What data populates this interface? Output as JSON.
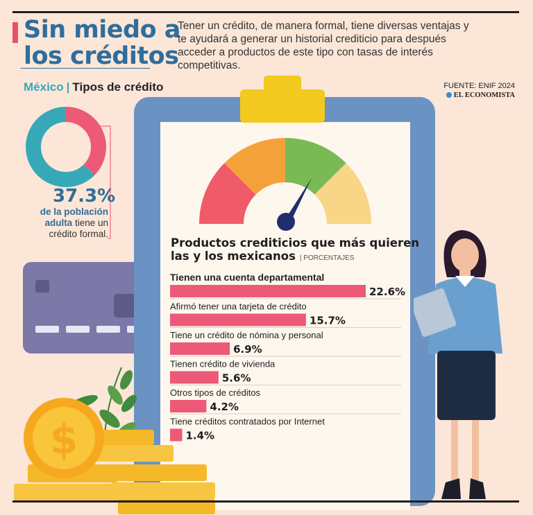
{
  "header": {
    "title_line1": "Sin miedo a",
    "title_line2": "los créditos",
    "intro": "Tener un crédito, de manera formal, tiene diversas ventajas y te ayudará a generar un historial crediticio para después acceder a productos de este tipo con tasas de interés competitivas.",
    "source": "FUENTE: ENIF 2024",
    "brand": "EL ECONOMISTA"
  },
  "summary": {
    "country": "México",
    "separator": "|",
    "topic": "Tipos de crédito",
    "percent": "37.3%",
    "desc_bold": "de la población adulta",
    "desc_rest": " tiene un crédito formal."
  },
  "colors": {
    "bar": "#ec5a78",
    "teal": "#37a8b8",
    "accent": "#e9506a",
    "blue": "#2f6d9c",
    "gauge": [
      "#ef5b69",
      "#f5a13a",
      "#79ba54",
      "#f9d588"
    ]
  },
  "chart_data": [
    {
      "type": "pie",
      "slices": [
        {
          "label": "tiene un crédito formal",
          "value": 37.3,
          "color": "#ec5a78"
        },
        {
          "label": "",
          "value": 62.7,
          "color": "#37a8b8"
        }
      ]
    },
    {
      "type": "bar",
      "orientation": "horizontal",
      "title": "Productos crediticios que más quieren las y los mexicanos",
      "title_line1": "Productos crediticios que más quieren",
      "title_line2": "las y los mexicanos",
      "unit": "| PORCENTAJES",
      "categories": [
        "Tienen una cuenta departamental",
        "Afirmó tener una tarjeta de crédito",
        "Tiene un crédito de nómina y personal",
        "Tienen crédito de vivienda",
        "Otros tipos de créditos",
        "Tiene créditos contratados por Internet"
      ],
      "values": [
        22.6,
        15.7,
        6.9,
        5.6,
        4.2,
        1.4
      ],
      "labels": [
        "22.6%",
        "15.7%",
        "6.9%",
        "5.6%",
        "4.2%",
        "1.4%"
      ]
    }
  ]
}
